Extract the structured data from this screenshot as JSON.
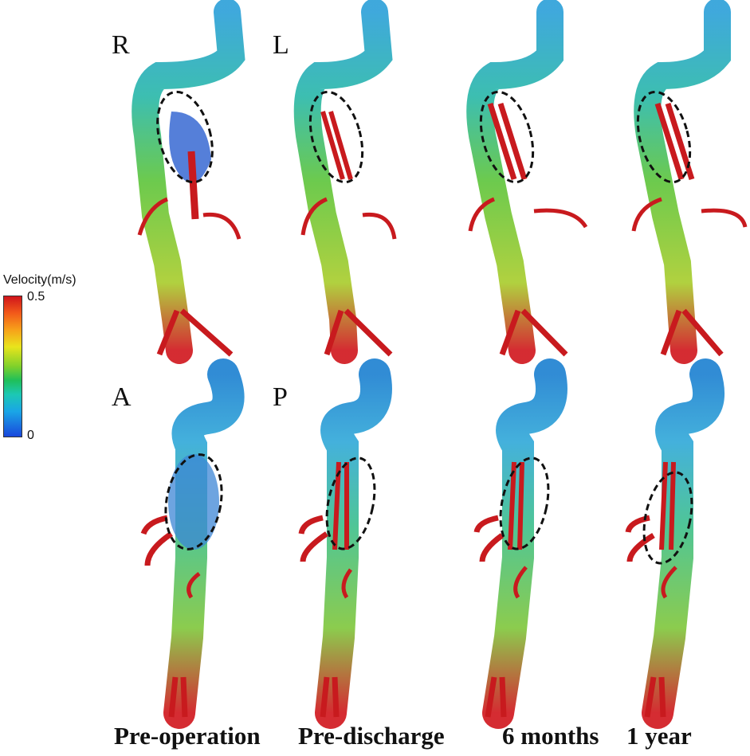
{
  "orientation": {
    "right": "R",
    "left": "L",
    "anterior": "A",
    "posterior": "P"
  },
  "columns": [
    "Pre-operation",
    "Pre-discharge",
    "6 months",
    "1 year"
  ],
  "colorbar": {
    "title": "Velocity(m/s)",
    "max": "0.5",
    "min": "0",
    "colors": [
      "#d0141b",
      "#f7a21a",
      "#e9e41c",
      "#1fbf5a",
      "#1cc8b4",
      "#1aa6e6",
      "#1947dc"
    ]
  }
}
